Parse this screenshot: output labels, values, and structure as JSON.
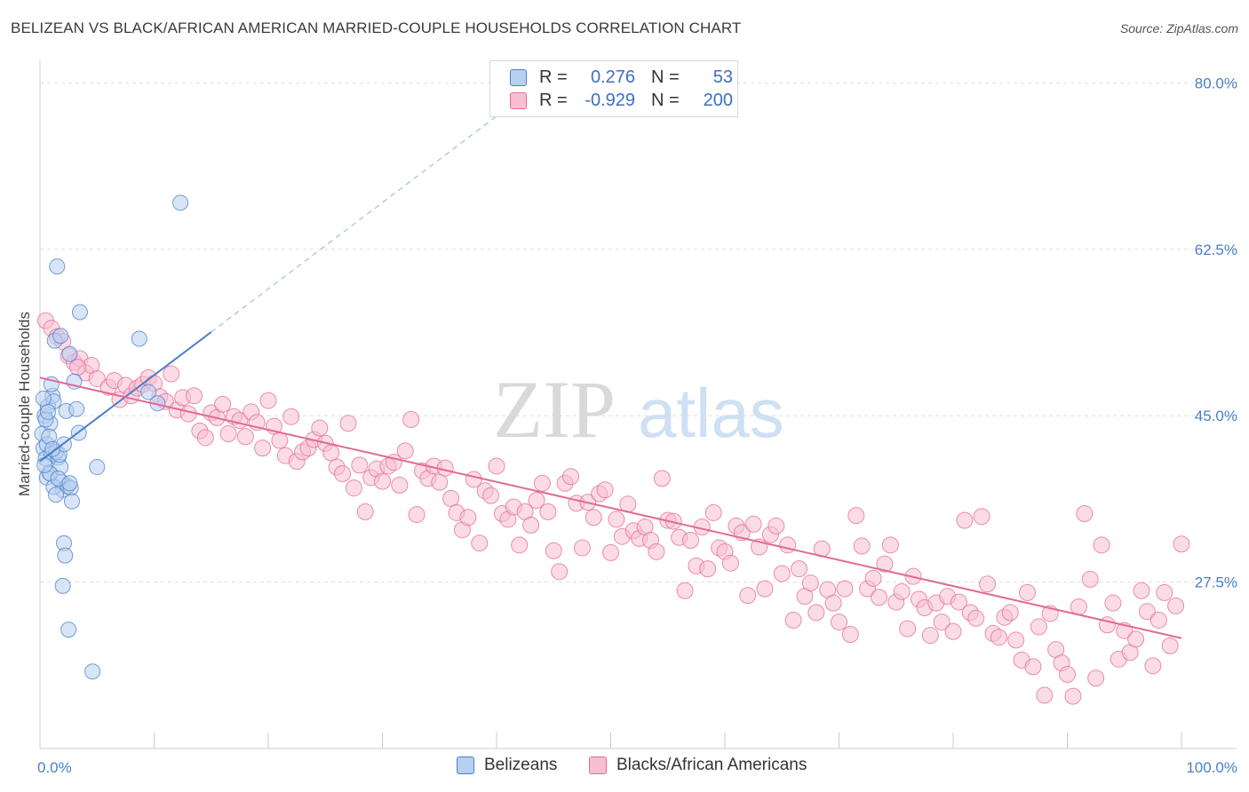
{
  "title": "BELIZEAN VS BLACK/AFRICAN AMERICAN MARRIED-COUPLE HOUSEHOLDS CORRELATION CHART",
  "source": "Source: ZipAtlas.com",
  "watermark": {
    "zip": "ZIP",
    "atlas": "atlas"
  },
  "legend": {
    "r_label": "R =",
    "n_label": "N =",
    "series": [
      {
        "name": "Belizeans",
        "r": "0.276",
        "n": "53",
        "color": "#4a7fc8",
        "fill": "#b8d0f0"
      },
      {
        "name": "Blacks/African Americans",
        "r": "-0.929",
        "n": "200",
        "color": "#e36a96",
        "fill": "#f7bfd2"
      }
    ]
  },
  "chart_data": {
    "type": "scatter",
    "xlabel": "",
    "ylabel": "Married-couple Households",
    "xlim": [
      0,
      100
    ],
    "ylim": [
      10,
      82
    ],
    "x_tick_labels": [
      {
        "value": 0,
        "label": "0.0%"
      },
      {
        "value": 100,
        "label": "100.0%"
      }
    ],
    "y_tick_labels": [
      {
        "value": 27.5,
        "label": "27.5%"
      },
      {
        "value": 45.0,
        "label": "45.0%"
      },
      {
        "value": 62.5,
        "label": "62.5%"
      },
      {
        "value": 80.0,
        "label": "80.0%"
      }
    ],
    "grid": true,
    "legend_position": "top-center",
    "series": [
      {
        "name": "Belizeans",
        "r": 0.276,
        "n": 53,
        "trend": {
          "x1": 0,
          "y1": 40.2,
          "x2": 15,
          "y2": 53.8,
          "dashed_to": {
            "x": 40,
            "y": 76.5
          }
        },
        "points": [
          [
            0.2,
            43.1
          ],
          [
            0.3,
            41.6
          ],
          [
            0.4,
            45.0
          ],
          [
            0.5,
            40.5
          ],
          [
            0.6,
            42.0
          ],
          [
            0.7,
            46.0
          ],
          [
            0.8,
            39.0
          ],
          [
            0.9,
            44.2
          ],
          [
            1.0,
            41.0
          ],
          [
            1.1,
            47.1
          ],
          [
            1.2,
            46.5
          ],
          [
            0.6,
            38.5
          ],
          [
            1.3,
            52.9
          ],
          [
            1.5,
            60.7
          ],
          [
            1.6,
            40.6
          ],
          [
            1.8,
            39.6
          ],
          [
            1.9,
            38.0
          ],
          [
            2.0,
            37.2
          ],
          [
            2.1,
            31.6
          ],
          [
            2.2,
            30.3
          ],
          [
            2.3,
            45.5
          ],
          [
            2.4,
            37.6
          ],
          [
            2.5,
            22.5
          ],
          [
            2.6,
            51.5
          ],
          [
            2.7,
            37.4
          ],
          [
            2.8,
            36.0
          ],
          [
            3.0,
            48.6
          ],
          [
            3.2,
            45.7
          ],
          [
            3.4,
            43.2
          ],
          [
            3.5,
            55.9
          ],
          [
            4.6,
            18.1
          ],
          [
            5.0,
            39.6
          ],
          [
            8.7,
            53.1
          ],
          [
            9.5,
            47.5
          ],
          [
            10.3,
            46.3
          ],
          [
            12.3,
            67.4
          ],
          [
            0.8,
            42.8
          ],
          [
            1.4,
            41.2
          ],
          [
            0.5,
            44.6
          ],
          [
            0.9,
            38.9
          ],
          [
            1.7,
            40.9
          ],
          [
            2.1,
            42.0
          ],
          [
            1.2,
            37.5
          ],
          [
            0.3,
            46.8
          ],
          [
            1.0,
            48.3
          ],
          [
            1.8,
            53.4
          ],
          [
            0.7,
            45.4
          ],
          [
            1.4,
            36.7
          ],
          [
            2.0,
            27.1
          ],
          [
            1.1,
            41.5
          ],
          [
            0.4,
            39.8
          ],
          [
            1.6,
            38.4
          ],
          [
            2.6,
            37.9
          ]
        ]
      },
      {
        "name": "Blacks/African Americans",
        "r": -0.929,
        "n": 200,
        "trend": {
          "x1": 0,
          "y1": 49.0,
          "x2": 100,
          "y2": 21.6
        },
        "points": [
          [
            0.5,
            55.0
          ],
          [
            1.0,
            54.2
          ],
          [
            1.5,
            53.3
          ],
          [
            2.0,
            52.8
          ],
          [
            2.5,
            51.3
          ],
          [
            3.0,
            50.6
          ],
          [
            3.5,
            51.0
          ],
          [
            4.0,
            49.5
          ],
          [
            4.5,
            50.3
          ],
          [
            5.0,
            48.9
          ],
          [
            6.0,
            48.0
          ],
          [
            6.5,
            48.7
          ],
          [
            7.0,
            46.7
          ],
          [
            7.5,
            48.2
          ],
          [
            8.0,
            47.1
          ],
          [
            8.5,
            47.9
          ],
          [
            9.0,
            48.3
          ],
          [
            9.5,
            49.0
          ],
          [
            10.0,
            48.4
          ],
          [
            10.5,
            47.0
          ],
          [
            11.0,
            46.5
          ],
          [
            11.5,
            49.4
          ],
          [
            12.0,
            45.6
          ],
          [
            12.5,
            46.9
          ],
          [
            13.0,
            45.2
          ],
          [
            13.5,
            47.1
          ],
          [
            14.0,
            43.4
          ],
          [
            14.5,
            42.7
          ],
          [
            15.0,
            45.3
          ],
          [
            15.5,
            44.8
          ],
          [
            16.0,
            46.2
          ],
          [
            16.5,
            43.1
          ],
          [
            17.0,
            44.9
          ],
          [
            17.5,
            44.5
          ],
          [
            18.0,
            42.8
          ],
          [
            18.5,
            45.4
          ],
          [
            19.0,
            44.3
          ],
          [
            19.5,
            41.6
          ],
          [
            20.0,
            46.6
          ],
          [
            20.5,
            43.9
          ],
          [
            21.0,
            42.4
          ],
          [
            21.5,
            40.8
          ],
          [
            22.0,
            44.9
          ],
          [
            22.5,
            40.2
          ],
          [
            23.0,
            41.2
          ],
          [
            23.5,
            41.6
          ],
          [
            24.0,
            42.5
          ],
          [
            24.5,
            43.7
          ],
          [
            25.0,
            42.1
          ],
          [
            25.5,
            41.1
          ],
          [
            26.0,
            39.6
          ],
          [
            26.5,
            38.9
          ],
          [
            27.0,
            44.2
          ],
          [
            27.5,
            37.4
          ],
          [
            28.0,
            39.8
          ],
          [
            28.5,
            34.9
          ],
          [
            29.0,
            38.5
          ],
          [
            29.5,
            39.4
          ],
          [
            30.0,
            38.1
          ],
          [
            30.5,
            39.7
          ],
          [
            31.0,
            40.1
          ],
          [
            31.5,
            37.7
          ],
          [
            32.0,
            41.3
          ],
          [
            32.5,
            44.6
          ],
          [
            33.0,
            34.6
          ],
          [
            33.5,
            39.2
          ],
          [
            34.0,
            38.4
          ],
          [
            34.5,
            39.7
          ],
          [
            35.0,
            38.0
          ],
          [
            35.5,
            39.5
          ],
          [
            36.0,
            36.3
          ],
          [
            36.5,
            34.8
          ],
          [
            37.0,
            33.0
          ],
          [
            37.5,
            34.3
          ],
          [
            38.0,
            38.3
          ],
          [
            38.5,
            31.6
          ],
          [
            39.0,
            37.1
          ],
          [
            39.5,
            36.6
          ],
          [
            40.0,
            39.7
          ],
          [
            40.5,
            34.7
          ],
          [
            41.0,
            34.1
          ],
          [
            41.5,
            35.4
          ],
          [
            42.0,
            31.4
          ],
          [
            42.5,
            34.9
          ],
          [
            43.0,
            33.5
          ],
          [
            43.5,
            36.1
          ],
          [
            44.0,
            37.9
          ],
          [
            44.5,
            34.9
          ],
          [
            45.0,
            30.8
          ],
          [
            45.5,
            28.6
          ],
          [
            46.0,
            37.9
          ],
          [
            46.5,
            38.6
          ],
          [
            47.0,
            35.8
          ],
          [
            47.5,
            31.1
          ],
          [
            48.0,
            35.9
          ],
          [
            48.5,
            34.3
          ],
          [
            49.0,
            36.8
          ],
          [
            49.5,
            37.2
          ],
          [
            50.0,
            30.6
          ],
          [
            50.5,
            34.1
          ],
          [
            51.0,
            32.3
          ],
          [
            51.5,
            35.7
          ],
          [
            52.0,
            32.9
          ],
          [
            52.5,
            32.1
          ],
          [
            53.0,
            33.3
          ],
          [
            53.5,
            31.9
          ],
          [
            54.0,
            30.7
          ],
          [
            54.5,
            38.4
          ],
          [
            55.0,
            34.0
          ],
          [
            55.5,
            33.9
          ],
          [
            56.0,
            32.2
          ],
          [
            56.5,
            26.6
          ],
          [
            57.0,
            31.9
          ],
          [
            57.5,
            29.2
          ],
          [
            58.0,
            33.3
          ],
          [
            58.5,
            28.9
          ],
          [
            59.0,
            34.8
          ],
          [
            59.5,
            31.1
          ],
          [
            60.0,
            30.7
          ],
          [
            60.5,
            29.5
          ],
          [
            61.0,
            33.4
          ],
          [
            61.5,
            32.7
          ],
          [
            62.0,
            26.1
          ],
          [
            62.5,
            33.6
          ],
          [
            63.0,
            31.2
          ],
          [
            63.5,
            26.8
          ],
          [
            64.0,
            32.5
          ],
          [
            64.5,
            33.4
          ],
          [
            65.0,
            28.4
          ],
          [
            65.5,
            31.4
          ],
          [
            66.0,
            23.5
          ],
          [
            66.5,
            28.9
          ],
          [
            67.0,
            26.0
          ],
          [
            67.5,
            27.4
          ],
          [
            68.0,
            24.3
          ],
          [
            68.5,
            31.0
          ],
          [
            69.0,
            26.7
          ],
          [
            69.5,
            25.3
          ],
          [
            70.0,
            23.3
          ],
          [
            70.5,
            26.8
          ],
          [
            71.0,
            22.0
          ],
          [
            71.5,
            34.5
          ],
          [
            72.0,
            31.3
          ],
          [
            72.5,
            26.8
          ],
          [
            73.0,
            27.9
          ],
          [
            73.5,
            25.9
          ],
          [
            74.0,
            29.4
          ],
          [
            74.5,
            31.4
          ],
          [
            75.0,
            25.4
          ],
          [
            75.5,
            26.5
          ],
          [
            76.0,
            22.6
          ],
          [
            76.5,
            28.1
          ],
          [
            77.0,
            25.7
          ],
          [
            77.5,
            24.8
          ],
          [
            78.0,
            21.9
          ],
          [
            78.5,
            25.3
          ],
          [
            79.0,
            23.3
          ],
          [
            79.5,
            26.0
          ],
          [
            80.0,
            22.3
          ],
          [
            80.5,
            25.4
          ],
          [
            81.0,
            34.0
          ],
          [
            81.5,
            24.3
          ],
          [
            82.0,
            23.7
          ],
          [
            82.5,
            34.4
          ],
          [
            83.0,
            27.3
          ],
          [
            83.5,
            22.1
          ],
          [
            84.0,
            21.7
          ],
          [
            84.5,
            23.8
          ],
          [
            85.0,
            24.3
          ],
          [
            85.5,
            21.4
          ],
          [
            86.0,
            19.3
          ],
          [
            86.5,
            26.4
          ],
          [
            87.0,
            18.6
          ],
          [
            87.5,
            22.8
          ],
          [
            88.0,
            15.6
          ],
          [
            88.5,
            24.2
          ],
          [
            89.0,
            20.4
          ],
          [
            89.5,
            19.0
          ],
          [
            90.0,
            17.8
          ],
          [
            90.5,
            15.5
          ],
          [
            91.0,
            24.9
          ],
          [
            91.5,
            34.7
          ],
          [
            92.0,
            27.8
          ],
          [
            92.5,
            17.4
          ],
          [
            93.0,
            31.4
          ],
          [
            93.5,
            23.0
          ],
          [
            94.0,
            25.3
          ],
          [
            94.5,
            19.4
          ],
          [
            95.0,
            22.4
          ],
          [
            95.5,
            20.1
          ],
          [
            96.0,
            21.5
          ],
          [
            96.5,
            26.6
          ],
          [
            97.0,
            24.4
          ],
          [
            97.5,
            18.7
          ],
          [
            98.0,
            23.5
          ],
          [
            98.5,
            26.4
          ],
          [
            99.0,
            20.8
          ],
          [
            99.5,
            25.0
          ],
          [
            100.0,
            31.5
          ],
          [
            3.3,
            50.1
          ]
        ]
      }
    ]
  }
}
